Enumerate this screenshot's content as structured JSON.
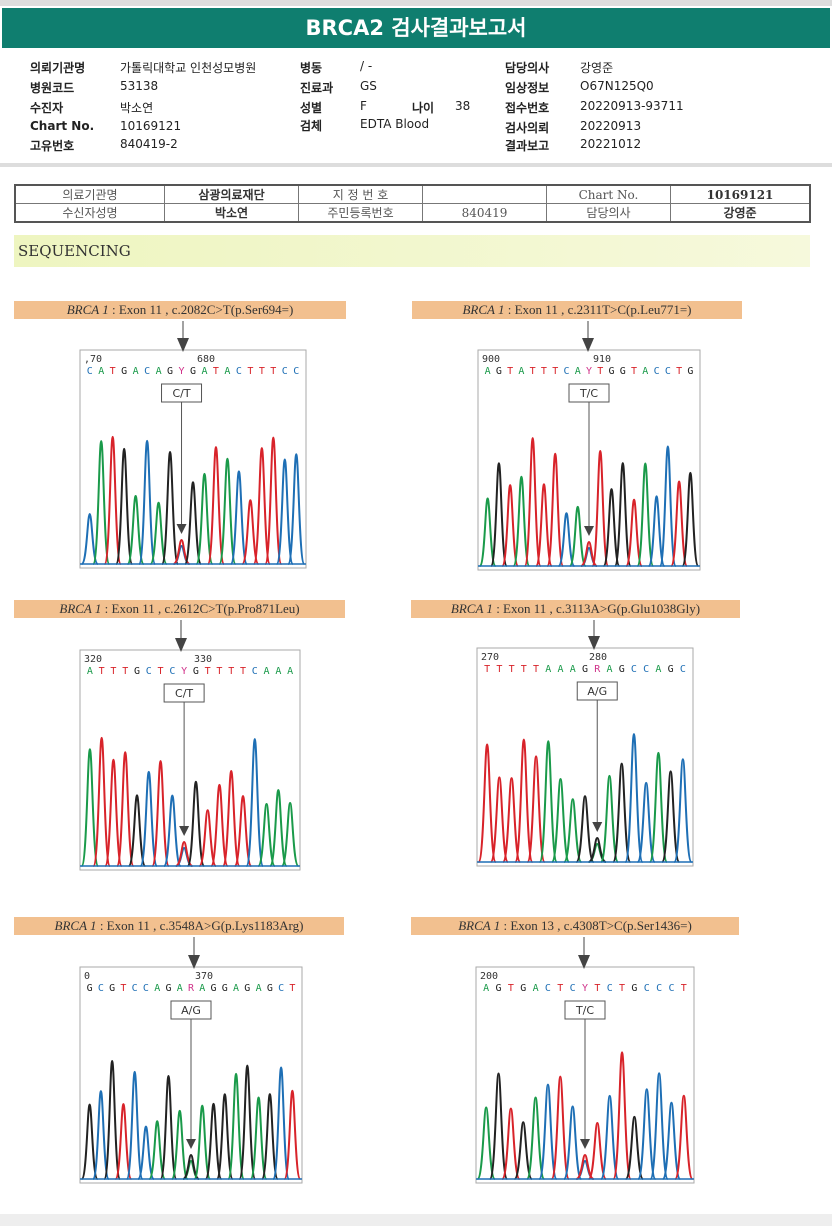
{
  "title": "BRCA2 검사결과보고서",
  "info": [
    {
      "k": "의뢰기관명",
      "v": "가톨릭대학교 인천성모병원"
    },
    {
      "k": "병원코드",
      "v": "53138"
    },
    {
      "k": "수진자",
      "v": "박소연"
    },
    {
      "k": "Chart No.",
      "v": "10169121"
    },
    {
      "k": "고유번호",
      "v": "840419-2"
    },
    {
      "k": "병동",
      "v": "/ -"
    },
    {
      "k": "진료과",
      "v": "GS"
    },
    {
      "k": "성별",
      "v": "F"
    },
    {
      "k": "나이",
      "v": "38"
    },
    {
      "k": "검체",
      "v": "EDTA Blood"
    },
    {
      "k": "담당의사",
      "v": "강영준"
    },
    {
      "k": "임상정보",
      "v": "O67N125Q0"
    },
    {
      "k": "접수번호",
      "v": "20220913-93711"
    },
    {
      "k": "검사의뢰",
      "v": "20220913"
    },
    {
      "k": "결과보고",
      "v": "20221012"
    }
  ],
  "report_table": {
    "r1": [
      "의료기관명",
      "삼광의료재단",
      "지 정 번 호",
      "",
      "Chart No.",
      "10169121"
    ],
    "r2": [
      "수신자성명",
      "박소연",
      "주민등록번호",
      "840419",
      "담당의사",
      "강영준"
    ]
  },
  "section": "SEQUENCING",
  "colors": {
    "A": "#1a9a4a",
    "C": "#1e6fb5",
    "G": "#222222",
    "T": "#d8232a",
    "Y": "#d0338a",
    "R": "#d0338a",
    "banner": "#0f7e6f"
  },
  "variants": [
    {
      "gene": "BRCA 1",
      "desc": " : Exon 11 , c.2082C>T(p.Ser694=)",
      "seq": "CATGACAGYGATACTTTCC",
      "ticks": [
        ",70",
        "680"
      ],
      "call": "C/T"
    },
    {
      "gene": "BRCA 1",
      "desc": " : Exon 11 , c.2311T>C(p.Leu771=)",
      "seq": "AGTATTTCAYTGGTACCTG",
      "ticks": [
        "900",
        "910"
      ],
      "call": "T/C"
    },
    {
      "gene": "BRCA 1",
      "desc": " : Exon 11 , c.2612C>T(p.Pro871Leu)",
      "seq": "ATTTGCTCYGTTTTCAAA",
      "ticks": [
        "320",
        "330"
      ],
      "call": "C/T"
    },
    {
      "gene": "BRCA 1",
      "desc": " : Exon 11 , c.3113A>G(p.Glu1038Gly)",
      "seq": "TTTTTAAAGRAGCCAGC",
      "ticks": [
        "270",
        "280"
      ],
      "call": "A/G"
    },
    {
      "gene": "BRCA 1",
      "desc": " : Exon 11 , c.3548A>G(p.Lys1183Arg)",
      "seq": "GCGTCCAGARAGGAGAGCT",
      "ticks": [
        "0",
        "370"
      ],
      "call": "A/G"
    },
    {
      "gene": "BRCA 1",
      "desc": " : Exon 13 , c.4308T>C(p.Ser1436=)",
      "seq": "AGTGACTCYTCTGCCCT",
      "ticks": [
        "200",
        ""
      ],
      "call": "T/C"
    }
  ]
}
